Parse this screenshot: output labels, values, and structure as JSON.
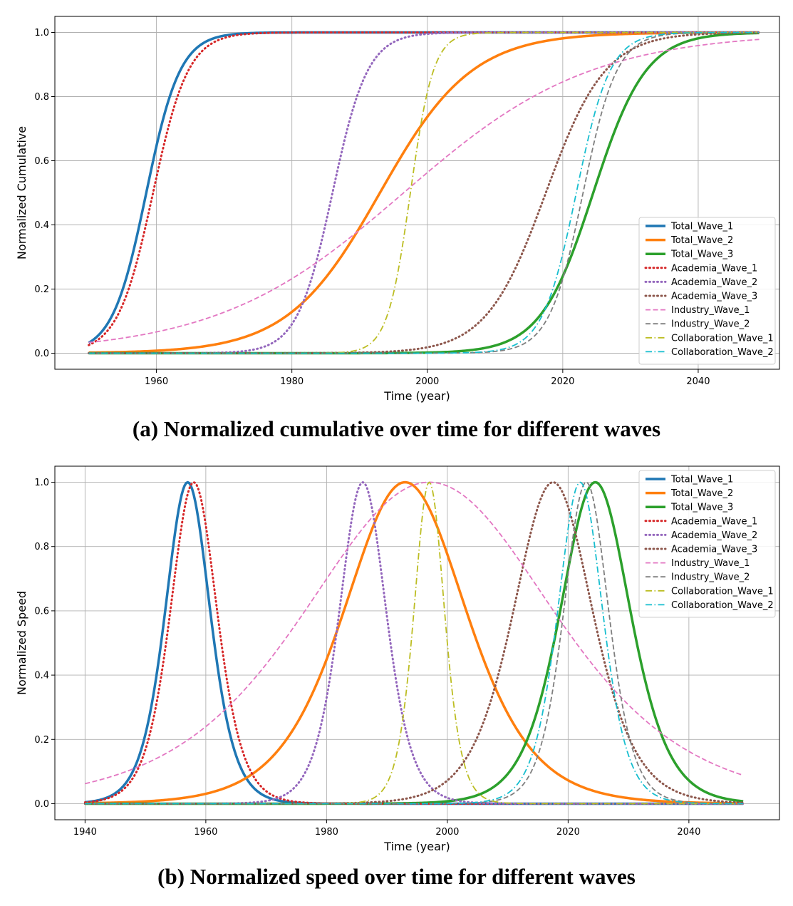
{
  "chart_data": [
    {
      "type": "line",
      "caption": "(a) Normalized cumulative over time for different waves",
      "xlabel": "Time (year)",
      "ylabel": "Normalized Cumulative",
      "xlim": [
        1945,
        2052
      ],
      "ylim": [
        -0.05,
        1.05
      ],
      "x_ticks": [
        1960,
        1980,
        2000,
        2020,
        2040
      ],
      "y_ticks": [
        0.0,
        0.2,
        0.4,
        0.6,
        0.8,
        1.0
      ],
      "grid": true,
      "legend_position": "lower-right",
      "x_range": [
        1950,
        2049
      ],
      "series": [
        {
          "name": "Total_Wave_1",
          "color": "#1f77b4",
          "style": "solid",
          "width": 3.5,
          "kind": "logistic",
          "t0": 1958.5,
          "s": 2.5
        },
        {
          "name": "Total_Wave_2",
          "color": "#ff7f0e",
          "style": "solid",
          "width": 3.5,
          "kind": "logistic",
          "t0": 1993,
          "s": 6.8
        },
        {
          "name": "Total_Wave_3",
          "color": "#2ca02c",
          "style": "solid",
          "width": 3.5,
          "kind": "logistic",
          "t0": 2024.5,
          "s": 3.9
        },
        {
          "name": "Academia_Wave_1",
          "color": "#d62728",
          "style": "dotted",
          "width": 3,
          "kind": "logistic",
          "t0": 1959.5,
          "s": 2.6
        },
        {
          "name": "Academia_Wave_2",
          "color": "#9467bd",
          "style": "dotted",
          "width": 3,
          "kind": "logistic",
          "t0": 1986,
          "s": 2.6
        },
        {
          "name": "Academia_Wave_3",
          "color": "#8c564b",
          "style": "dotted",
          "width": 3,
          "kind": "logistic",
          "t0": 2017.5,
          "s": 4.4
        },
        {
          "name": "Industry_Wave_1",
          "color": "#e377c2",
          "style": "dashed",
          "width": 1.8,
          "kind": "logistic",
          "t0": 1996.5,
          "s": 13.8
        },
        {
          "name": "Industry_Wave_2",
          "color": "#7f7f7f",
          "style": "dashed",
          "width": 1.8,
          "kind": "logistic",
          "t0": 2023,
          "s": 2.5
        },
        {
          "name": "Collaboration_Wave_1",
          "color": "#bcbd22",
          "style": "dashdot",
          "width": 1.8,
          "kind": "logistic",
          "t0": 1997.5,
          "s": 1.7
        },
        {
          "name": "Collaboration_Wave_2",
          "color": "#17becf",
          "style": "dashdot",
          "width": 1.8,
          "kind": "logistic",
          "t0": 2022,
          "s": 2.5
        }
      ]
    },
    {
      "type": "line",
      "caption": "(b) Normalized speed over time for different waves",
      "xlabel": "Time (year)",
      "ylabel": "Normalized Speed",
      "xlim": [
        1935,
        2055
      ],
      "ylim": [
        -0.05,
        1.05
      ],
      "x_ticks": [
        1940,
        1960,
        1980,
        2000,
        2020,
        2040
      ],
      "y_ticks": [
        0.0,
        0.2,
        0.4,
        0.6,
        0.8,
        1.0
      ],
      "grid": true,
      "legend_position": "top-right",
      "x_range": [
        1940,
        2049
      ],
      "series": [
        {
          "name": "Total_Wave_1",
          "color": "#1f77b4",
          "style": "solid",
          "width": 3.5,
          "kind": "bell",
          "t0": 1957,
          "s": 2.5
        },
        {
          "name": "Total_Wave_2",
          "color": "#ff7f0e",
          "style": "solid",
          "width": 3.5,
          "kind": "bell",
          "t0": 1993,
          "s": 6.8
        },
        {
          "name": "Total_Wave_3",
          "color": "#2ca02c",
          "style": "solid",
          "width": 3.5,
          "kind": "bell",
          "t0": 2024.5,
          "s": 3.9
        },
        {
          "name": "Academia_Wave_1",
          "color": "#d62728",
          "style": "dotted",
          "width": 3,
          "kind": "bell",
          "t0": 1958,
          "s": 2.6
        },
        {
          "name": "Academia_Wave_2",
          "color": "#9467bd",
          "style": "dotted",
          "width": 3,
          "kind": "bell",
          "t0": 1986,
          "s": 2.6
        },
        {
          "name": "Academia_Wave_3",
          "color": "#8c564b",
          "style": "dotted",
          "width": 3,
          "kind": "bell",
          "t0": 2017.5,
          "s": 4.4
        },
        {
          "name": "Industry_Wave_1",
          "color": "#e377c2",
          "style": "dashed",
          "width": 1.8,
          "kind": "bell",
          "t0": 1997,
          "s": 13.8
        },
        {
          "name": "Industry_Wave_2",
          "color": "#7f7f7f",
          "style": "dashed",
          "width": 1.8,
          "kind": "bell",
          "t0": 2023,
          "s": 2.5
        },
        {
          "name": "Collaboration_Wave_1",
          "color": "#bcbd22",
          "style": "dashdot",
          "width": 1.8,
          "kind": "bell",
          "t0": 1997,
          "s": 1.7
        },
        {
          "name": "Collaboration_Wave_2",
          "color": "#17becf",
          "style": "dashdot",
          "width": 1.8,
          "kind": "bell",
          "t0": 2022,
          "s": 2.5
        }
      ]
    }
  ]
}
